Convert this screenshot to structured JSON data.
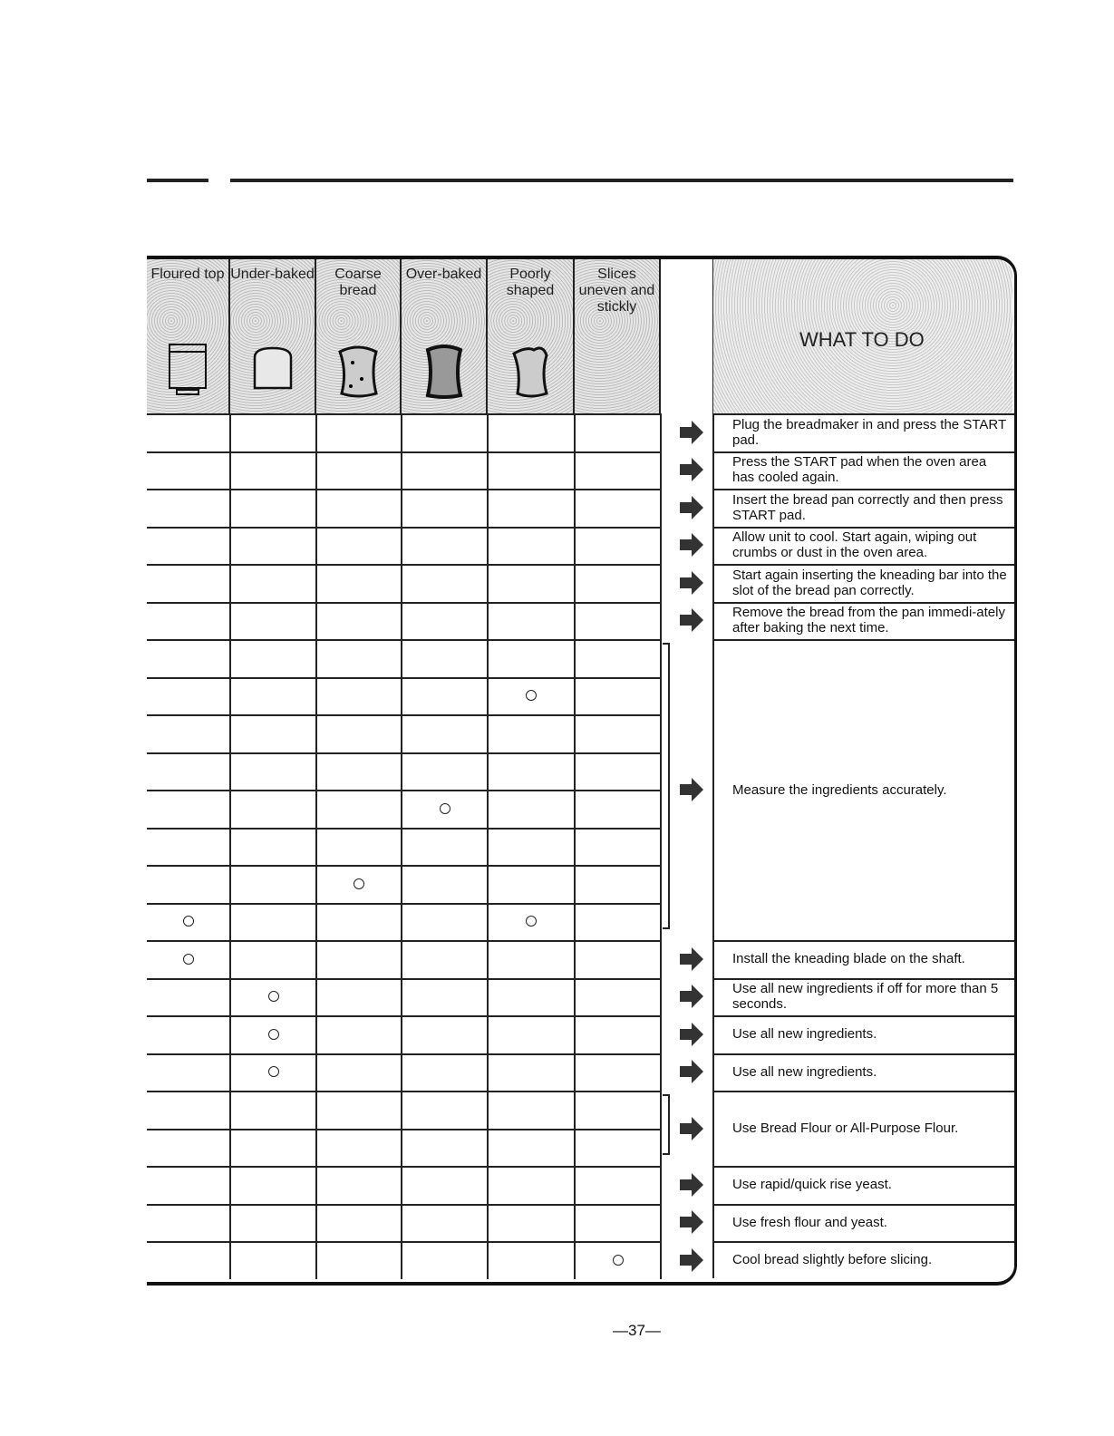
{
  "columns": [
    {
      "label": "Floured top",
      "icon": "bread-pan-icon"
    },
    {
      "label": "Under-baked",
      "icon": "pale-slice-icon"
    },
    {
      "label": "Coarse bread",
      "icon": "coarse-slice-icon"
    },
    {
      "label": "Over-baked",
      "icon": "dark-slice-icon"
    },
    {
      "label": "Poorly shaped",
      "icon": "misshapen-slice-icon"
    },
    {
      "label": "Slices uneven and stickly",
      "icon": ""
    }
  ],
  "what_to_do_title": "WHAT TO DO",
  "marks": [
    [
      7,
      4
    ],
    [
      10,
      3
    ],
    [
      12,
      2
    ],
    [
      13,
      0
    ],
    [
      13,
      4
    ],
    [
      14,
      0
    ],
    [
      15,
      1
    ],
    [
      16,
      1
    ],
    [
      17,
      1
    ],
    [
      22,
      5
    ]
  ],
  "actions": [
    {
      "rows": [
        0,
        0
      ],
      "text": "Plug the breadmaker in and press the START pad."
    },
    {
      "rows": [
        1,
        1
      ],
      "text": "Press the START pad when the oven area has cooled again."
    },
    {
      "rows": [
        2,
        2
      ],
      "text": "Insert the bread pan correctly and then press START pad."
    },
    {
      "rows": [
        3,
        3
      ],
      "text": "Allow unit to cool. Start again, wiping out crumbs or dust in the oven area."
    },
    {
      "rows": [
        4,
        4
      ],
      "text": "Start again inserting the kneading bar into the slot of the bread pan correctly."
    },
    {
      "rows": [
        5,
        5
      ],
      "text": "Remove the bread from the pan immedi-ately after baking the next time."
    },
    {
      "rows": [
        6,
        13
      ],
      "text": "Measure the ingredients accurately."
    },
    {
      "rows": [
        14,
        14
      ],
      "text": "Install the kneading blade on the shaft."
    },
    {
      "rows": [
        15,
        15
      ],
      "text": "Use all new ingredients if off for more than 5 seconds."
    },
    {
      "rows": [
        16,
        16
      ],
      "text": "Use all new ingredients."
    },
    {
      "rows": [
        17,
        17
      ],
      "text": "Use all new ingredients."
    },
    {
      "rows": [
        18,
        19
      ],
      "text": "Use Bread Flour or All-Purpose Flour."
    },
    {
      "rows": [
        20,
        20
      ],
      "text": "Use rapid/quick rise yeast."
    },
    {
      "rows": [
        21,
        21
      ],
      "text": "Use fresh flour and yeast."
    },
    {
      "rows": [
        22,
        22
      ],
      "text": "Cool bread slightly before slicing."
    }
  ],
  "page_number": "—37—"
}
